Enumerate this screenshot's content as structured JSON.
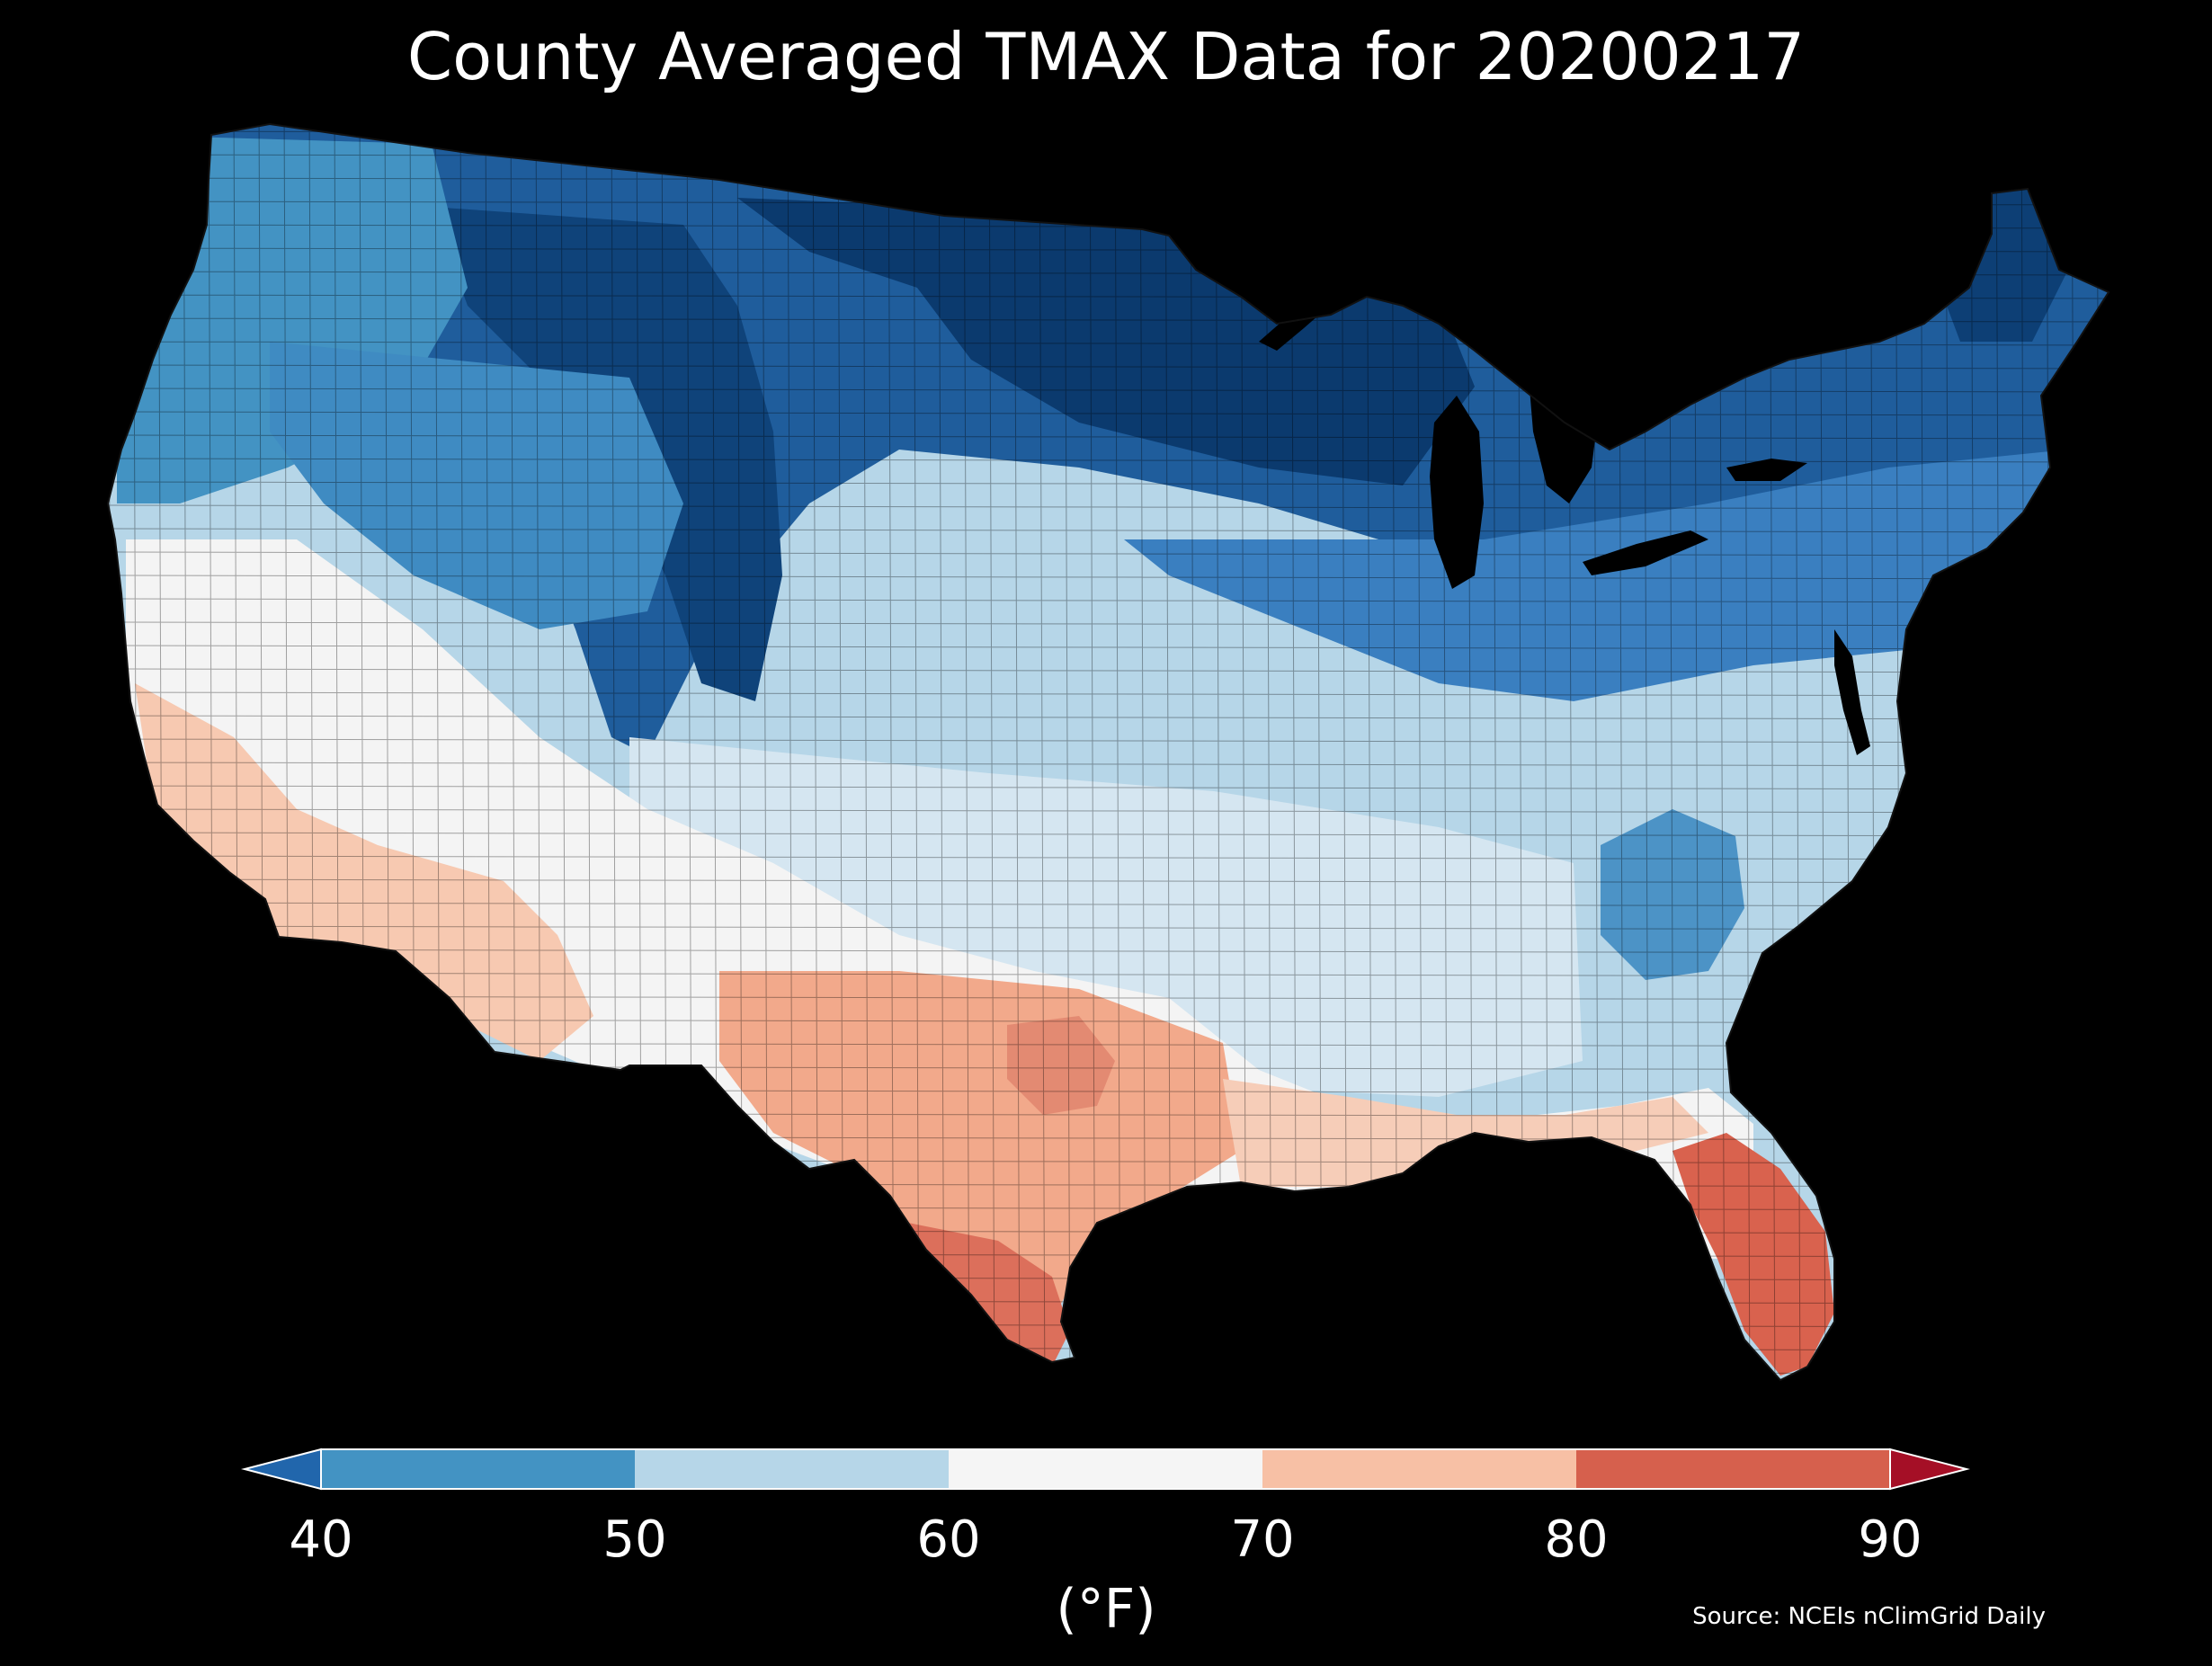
{
  "title": "County Averaged TMAX Data for 20200217",
  "colorbar": {
    "label": "(°F)",
    "ticks": [
      "40",
      "50",
      "60",
      "70",
      "80",
      "90"
    ],
    "bins": [
      {
        "range": "<40",
        "color": "#2166ac"
      },
      {
        "range": "40-50",
        "color": "#4393c3"
      },
      {
        "range": "50-60",
        "color": "#b6d6e8"
      },
      {
        "range": "60-70",
        "color": "#f5f5f5"
      },
      {
        "range": "70-80",
        "color": "#f7c0a5"
      },
      {
        "range": "80-90",
        "color": "#d6604d"
      },
      {
        "range": ">90",
        "color": "#a50f26"
      }
    ]
  },
  "source": "Source: NCEIs nClimGrid Daily",
  "map": {
    "region": "Contiguous United States",
    "variable": "TMAX",
    "background_color": "#000000",
    "regional_pattern": [
      {
        "region": "Upper Midwest and Northern Plains",
        "bin": "<40"
      },
      {
        "region": "Northern Rockies",
        "bin": "<40"
      },
      {
        "region": "Northeast and Great Lakes",
        "bin": "40-50"
      },
      {
        "region": "Pacific Northwest",
        "bin": "40-50"
      },
      {
        "region": "Central Plains and Ohio Valley",
        "bin": "50-60"
      },
      {
        "region": "Southern Appalachians",
        "bin": "40-50"
      },
      {
        "region": "Southwest and Great Basin",
        "bin": "60-70"
      },
      {
        "region": "Southern California and Arizona",
        "bin": "70-80"
      },
      {
        "region": "Texas",
        "bin": "70-80"
      },
      {
        "region": "South Texas and Florida",
        "bin": "80-90"
      }
    ]
  }
}
